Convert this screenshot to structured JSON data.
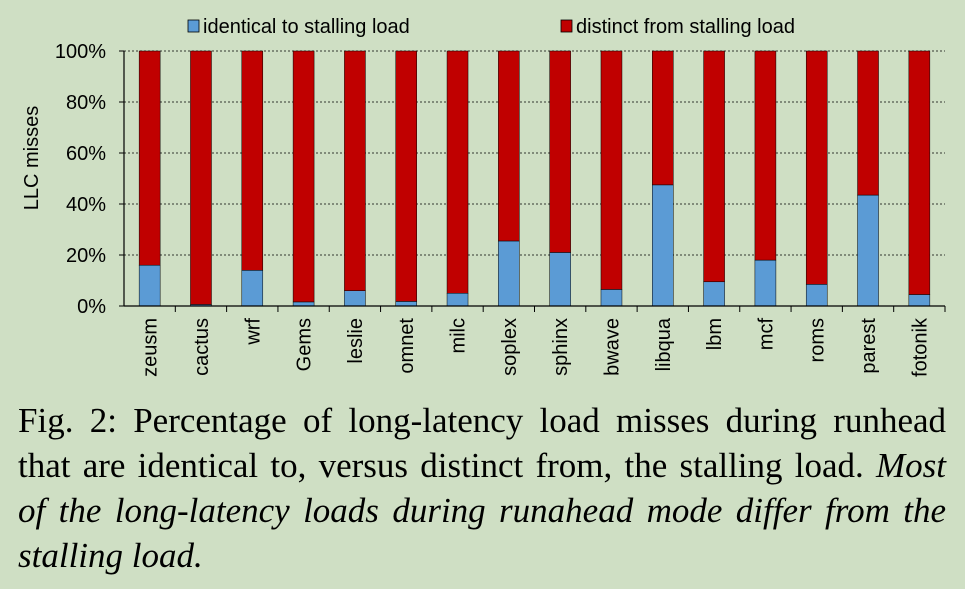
{
  "chart_data": {
    "type": "bar",
    "stacked": true,
    "percent": true,
    "ylabel": "LLC misses",
    "ylim": [
      0,
      100
    ],
    "yticks": [
      "0%",
      "20%",
      "40%",
      "60%",
      "80%",
      "100%"
    ],
    "grid": "horizontal-dashed",
    "legend_position": "top",
    "categories": [
      "zeusm",
      "cactus",
      "wrf",
      "Gems",
      "leslie",
      "omnet",
      "milc",
      "soplex",
      "sphinx",
      "bwave",
      "libqua",
      "lbm",
      "mcf",
      "roms",
      "parest",
      "fotonik"
    ],
    "series": [
      {
        "name": "identical to stalling load",
        "color": "#5b9bd5",
        "values": [
          16,
          0.6,
          14,
          1.6,
          6,
          1.8,
          5,
          25.5,
          21,
          6.5,
          47.5,
          9.5,
          18,
          8.5,
          43.5,
          4.5
        ]
      },
      {
        "name": "distinct from stalling load",
        "color": "#c00000",
        "values": [
          84,
          99.4,
          86,
          98.4,
          94,
          98.2,
          95,
          74.5,
          79,
          93.5,
          52.5,
          90.5,
          82,
          91.5,
          56.5,
          95.5
        ]
      }
    ]
  },
  "caption": {
    "label": "Fig. 2:",
    "text": "Percentage of long-latency load misses during runhead that are identical to, versus distinct from, the stalling load.",
    "emphasis": "Most of the long-latency loads during runahead mode differ from the stalling load."
  }
}
